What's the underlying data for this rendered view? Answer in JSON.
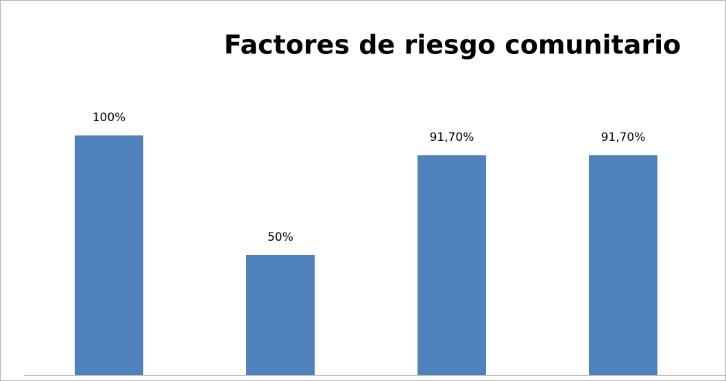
{
  "chart_data": {
    "type": "bar",
    "title": "Factores de riesgo comunitario",
    "categories": [
      null,
      null,
      null,
      null
    ],
    "values": [
      100,
      50,
      91.7,
      91.7
    ],
    "value_labels": [
      "100%",
      "50%",
      "91,70%",
      "91,70%"
    ],
    "color": "#4f81bd"
  }
}
